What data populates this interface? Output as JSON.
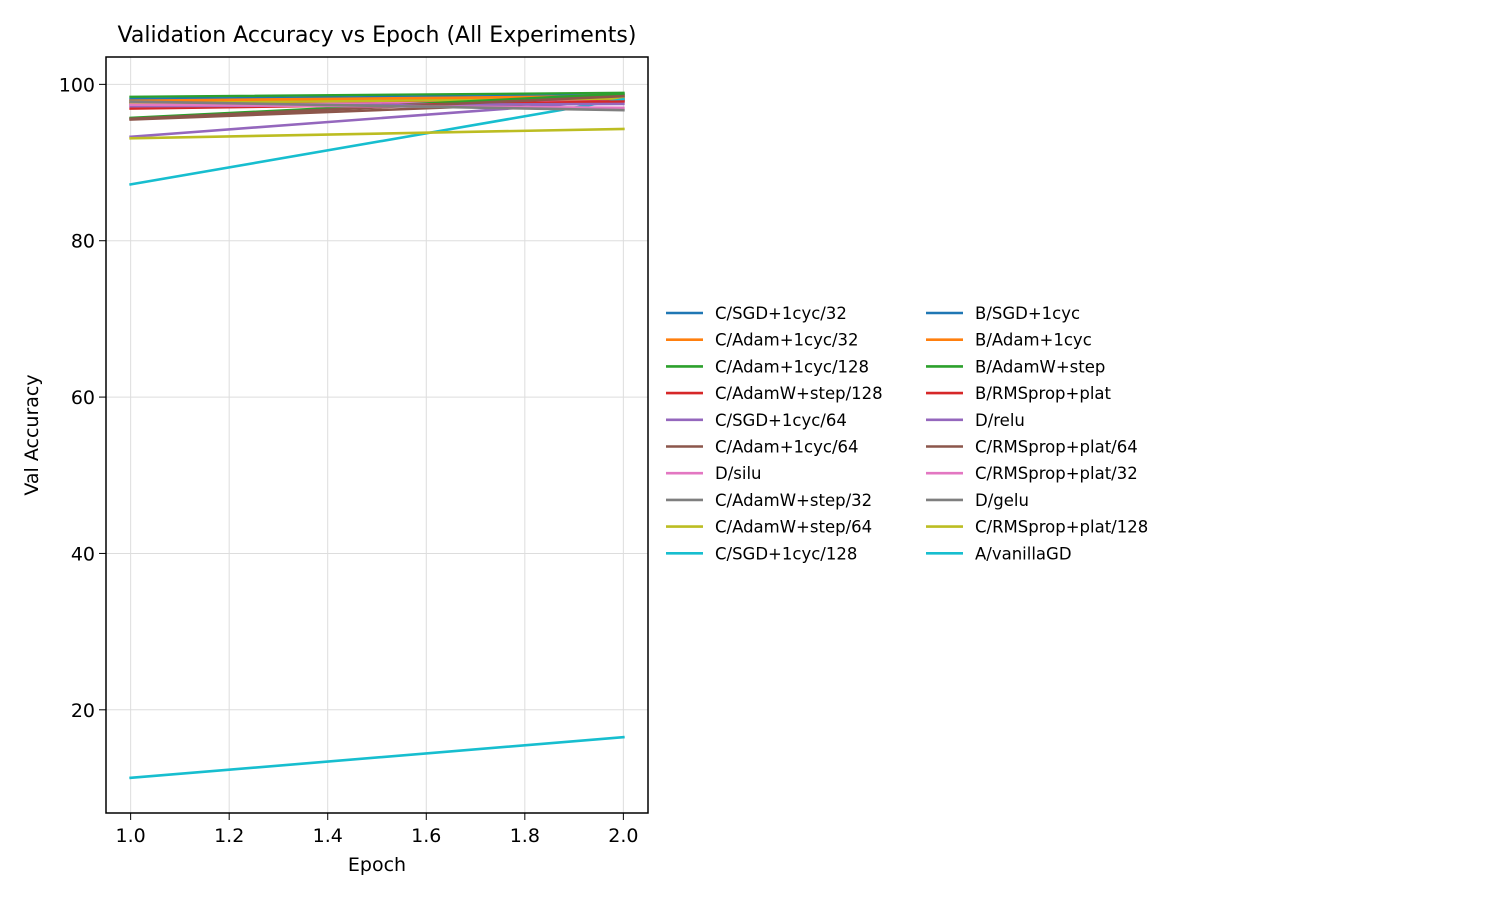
{
  "chart_data": {
    "type": "line",
    "title": "Validation Accuracy vs Epoch (All Experiments)",
    "xlabel": "Epoch",
    "ylabel": "Val Accuracy",
    "x": [
      1.0,
      2.0
    ],
    "xlim": [
      0.95,
      2.05
    ],
    "ylim": [
      6.8,
      103.5
    ],
    "xticks": [
      1.0,
      1.2,
      1.4,
      1.6,
      1.8,
      2.0
    ],
    "xtick_labels": [
      "1.0",
      "1.2",
      "1.4",
      "1.6",
      "1.8",
      "2.0"
    ],
    "yticks": [
      20,
      40,
      60,
      80,
      100
    ],
    "ytick_labels": [
      "20",
      "40",
      "60",
      "80",
      "100"
    ],
    "grid": true,
    "legend": {
      "placement": "right, outside plot",
      "columns": 2
    },
    "series": [
      {
        "name": "C/SGD+1cyc/32",
        "color": "#1f77b4",
        "values": [
          97.8,
          98.4
        ]
      },
      {
        "name": "C/Adam+1cyc/32",
        "color": "#ff7f0e",
        "values": [
          98.0,
          98.3
        ]
      },
      {
        "name": "C/Adam+1cyc/128",
        "color": "#2ca02c",
        "values": [
          98.4,
          98.9
        ]
      },
      {
        "name": "C/AdamW+step/128",
        "color": "#d62728",
        "values": [
          97.6,
          98.1
        ]
      },
      {
        "name": "C/SGD+1cyc/64",
        "color": "#9467bd",
        "values": [
          93.3,
          98.0
        ]
      },
      {
        "name": "C/Adam+1cyc/64",
        "color": "#8c564b",
        "values": [
          95.5,
          97.9
        ]
      },
      {
        "name": "D/silu",
        "color": "#e377c2",
        "values": [
          97.3,
          97.8
        ]
      },
      {
        "name": "C/AdamW+step/32",
        "color": "#7f7f7f",
        "values": [
          97.5,
          98.7
        ]
      },
      {
        "name": "C/AdamW+step/64",
        "color": "#bcbd22",
        "values": [
          97.6,
          98.2
        ]
      },
      {
        "name": "C/SGD+1cyc/128",
        "color": "#17becf",
        "values": [
          87.2,
          98.1
        ]
      },
      {
        "name": "B/SGD+1cyc",
        "color": "#1f77b4",
        "values": [
          98.1,
          98.6
        ]
      },
      {
        "name": "B/Adam+1cyc",
        "color": "#ff7f0e",
        "values": [
          97.9,
          98.5
        ]
      },
      {
        "name": "B/AdamW+step",
        "color": "#2ca02c",
        "values": [
          95.7,
          98.8
        ]
      },
      {
        "name": "B/RMSprop+plat",
        "color": "#d62728",
        "values": [
          96.9,
          97.8
        ]
      },
      {
        "name": "D/relu",
        "color": "#9467bd",
        "values": [
          97.2,
          97.5
        ]
      },
      {
        "name": "C/RMSprop+plat/64",
        "color": "#8c564b",
        "values": [
          95.6,
          98.5
        ]
      },
      {
        "name": "C/RMSprop+plat/32",
        "color": "#e377c2",
        "values": [
          97.4,
          97.0
        ]
      },
      {
        "name": "D/gelu",
        "color": "#7f7f7f",
        "values": [
          97.8,
          96.7
        ]
      },
      {
        "name": "C/RMSprop+plat/128",
        "color": "#bcbd22",
        "values": [
          93.1,
          94.3
        ]
      },
      {
        "name": "A/vanillaGD",
        "color": "#17becf",
        "values": [
          11.3,
          16.5
        ]
      }
    ]
  }
}
